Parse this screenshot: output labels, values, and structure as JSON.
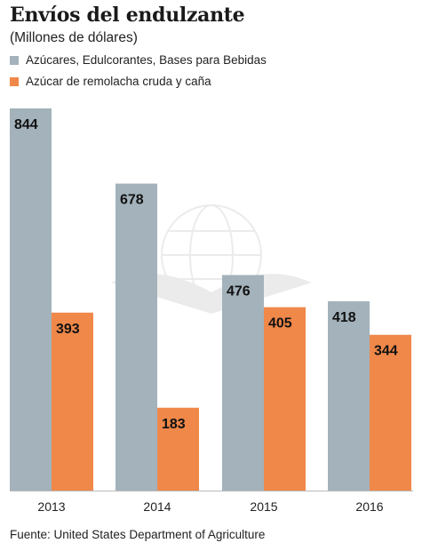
{
  "chart_data": {
    "type": "bar",
    "title": "Envíos del endulzante",
    "subtitle": "(Millones de dólares)",
    "categories": [
      "2013",
      "2014",
      "2015",
      "2016"
    ],
    "series": [
      {
        "name": "Azúcares, Edulcorantes, Bases para Bebidas",
        "color": "#a3b2bb",
        "values": [
          844,
          678,
          476,
          418
        ]
      },
      {
        "name": "Azúcar de remolacha cruda y caña",
        "color": "#f0884a",
        "values": [
          393,
          183,
          405,
          344
        ]
      }
    ],
    "xlabel": "",
    "ylabel": "",
    "ylim": [
      0,
      844
    ],
    "grid": false,
    "legend": "top-left",
    "data_labels": true,
    "source": "Fuente: United States Department of Agriculture"
  }
}
